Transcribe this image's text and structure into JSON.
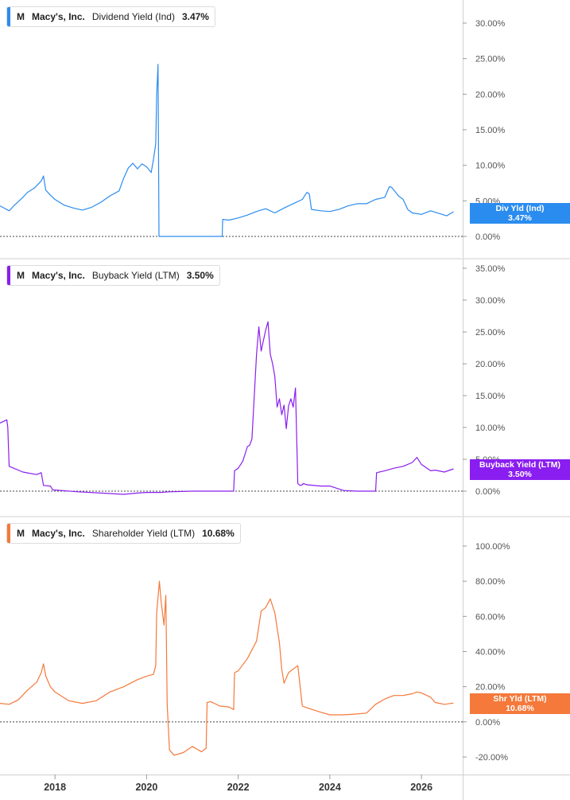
{
  "chart_data": [
    {
      "type": "line",
      "legend": {
        "ticker": "M",
        "company": "Macy's, Inc.",
        "metric": "Dividend Yield (Ind)",
        "value": "3.47%"
      },
      "badge": {
        "label": "Div Yld (Ind)",
        "value": "3.47%"
      },
      "color": "#2b8cef",
      "yticks": [
        "0.00%",
        "5.00%",
        "10.00%",
        "15.00%",
        "20.00%",
        "25.00%",
        "30.00%"
      ],
      "ylim": [
        0,
        30
      ],
      "series": [
        {
          "x": [
            2016.8,
            2017.0,
            2017.1,
            2017.3,
            2017.4,
            2017.55,
            2017.7,
            2017.75,
            2017.8,
            2017.9,
            2018.0,
            2018.2,
            2018.4,
            2018.6,
            2018.8,
            2019.0,
            2019.2,
            2019.4,
            2019.5,
            2019.6,
            2019.7,
            2019.8,
            2019.9,
            2020.0,
            2020.1,
            2020.15,
            2020.2,
            2020.22,
            2020.25,
            2020.27,
            2020.3,
            2020.5,
            2021.0,
            2021.5,
            2021.65,
            2021.66,
            2021.8,
            2022.0,
            2022.2,
            2022.4,
            2022.6,
            2022.8,
            2023.0,
            2023.2,
            2023.4,
            2023.5,
            2023.55,
            2023.6,
            2023.8,
            2024.0,
            2024.2,
            2024.4,
            2024.6,
            2024.8,
            2025.0,
            2025.2,
            2025.3,
            2025.35,
            2025.5,
            2025.6,
            2025.7,
            2025.8,
            2026.0,
            2026.2,
            2026.4,
            2026.55,
            2026.7
          ],
          "y": [
            4.3,
            3.6,
            4.3,
            5.5,
            6.2,
            6.8,
            7.8,
            8.5,
            6.5,
            5.8,
            5.2,
            4.4,
            4.0,
            3.7,
            4.1,
            4.8,
            5.7,
            6.4,
            8.2,
            9.6,
            10.3,
            9.5,
            10.2,
            9.8,
            9.0,
            10.8,
            13.0,
            20.0,
            24.2,
            0.0,
            0.0,
            0.0,
            0.0,
            0.0,
            0.0,
            2.4,
            2.3,
            2.6,
            3.0,
            3.5,
            3.9,
            3.3,
            4.0,
            4.6,
            5.2,
            6.2,
            6.0,
            3.8,
            3.6,
            3.5,
            3.8,
            4.3,
            4.6,
            4.6,
            5.2,
            5.5,
            7.0,
            6.9,
            5.7,
            5.2,
            3.8,
            3.3,
            3.1,
            3.6,
            3.2,
            2.9,
            3.47
          ]
        }
      ]
    },
    {
      "type": "line",
      "legend": {
        "ticker": "M",
        "company": "Macy's, Inc.",
        "metric": "Buyback Yield (LTM)",
        "value": "3.50%"
      },
      "badge": {
        "label": "Buyback Yield (LTM)",
        "value": "3.50%"
      },
      "color": "#8a1ef0",
      "yticks": [
        "0.00%",
        "5.00%",
        "10.00%",
        "15.00%",
        "20.00%",
        "25.00%",
        "30.00%",
        "35.00%"
      ],
      "ylim": [
        0,
        35
      ],
      "series": [
        {
          "x": [
            2016.8,
            2016.95,
            2016.97,
            2017.0,
            2017.3,
            2017.6,
            2017.7,
            2017.75,
            2017.9,
            2017.95,
            2018.5,
            2019.0,
            2019.5,
            2019.8,
            2020.0,
            2020.3,
            2020.5,
            2021.0,
            2021.5,
            2021.9,
            2021.92,
            2022.0,
            2022.1,
            2022.2,
            2022.25,
            2022.3,
            2022.4,
            2022.45,
            2022.5,
            2022.6,
            2022.65,
            2022.7,
            2022.75,
            2022.8,
            2022.85,
            2022.9,
            2022.95,
            2023.0,
            2023.05,
            2023.1,
            2023.15,
            2023.2,
            2023.25,
            2023.3,
            2023.35,
            2023.4,
            2023.42,
            2023.5,
            2023.8,
            2024.0,
            2024.3,
            2024.6,
            2024.8,
            2025.0,
            2025.02,
            2025.2,
            2025.4,
            2025.6,
            2025.8,
            2025.9,
            2026.0,
            2026.2,
            2026.3,
            2026.5,
            2026.7
          ],
          "y": [
            10.7,
            11.2,
            10.0,
            3.9,
            3.0,
            2.6,
            2.9,
            0.9,
            0.8,
            0.2,
            -0.1,
            -0.3,
            -0.5,
            -0.3,
            -0.2,
            -0.2,
            -0.1,
            0.0,
            0.0,
            0.0,
            3.2,
            3.6,
            4.7,
            7.0,
            7.2,
            8.2,
            21.5,
            25.8,
            22.0,
            25.3,
            26.6,
            21.5,
            20.0,
            18.0,
            13.2,
            14.5,
            12.0,
            13.5,
            9.8,
            13.4,
            14.5,
            13.2,
            16.2,
            1.2,
            0.9,
            1.0,
            1.2,
            1.0,
            0.8,
            0.8,
            0.1,
            0.0,
            0.0,
            0.0,
            2.9,
            3.2,
            3.6,
            3.9,
            4.5,
            5.3,
            4.2,
            3.2,
            3.3,
            3.0,
            3.5
          ]
        }
      ]
    },
    {
      "type": "line",
      "legend": {
        "ticker": "M",
        "company": "Macy's, Inc.",
        "metric": "Shareholder Yield (LTM)",
        "value": "10.68%"
      },
      "badge": {
        "label": "Shr Yld (LTM)",
        "value": "10.68%"
      },
      "color": "#f4793b",
      "yticks": [
        "-20.00%",
        "0.00%",
        "20.00%",
        "40.00%",
        "60.00%",
        "80.00%",
        "100.00%"
      ],
      "ylim": [
        -20,
        100
      ],
      "series": [
        {
          "x": [
            2016.8,
            2017.0,
            2017.2,
            2017.4,
            2017.6,
            2017.7,
            2017.75,
            2017.8,
            2017.9,
            2018.0,
            2018.3,
            2018.6,
            2018.9,
            2019.2,
            2019.5,
            2019.8,
            2020.0,
            2020.15,
            2020.2,
            2020.22,
            2020.28,
            2020.32,
            2020.38,
            2020.42,
            2020.45,
            2020.5,
            2020.6,
            2020.8,
            2021.0,
            2021.2,
            2021.3,
            2021.32,
            2021.4,
            2021.6,
            2021.8,
            2021.9,
            2021.92,
            2022.0,
            2022.2,
            2022.4,
            2022.5,
            2022.6,
            2022.7,
            2022.8,
            2022.9,
            2022.95,
            2023.0,
            2023.1,
            2023.3,
            2023.4,
            2023.5,
            2023.8,
            2024.0,
            2024.3,
            2024.6,
            2024.8,
            2025.0,
            2025.2,
            2025.4,
            2025.6,
            2025.8,
            2025.9,
            2026.0,
            2026.2,
            2026.3,
            2026.5,
            2026.7
          ],
          "y": [
            10.5,
            10.0,
            12.5,
            18.0,
            22.5,
            28.0,
            33.0,
            26.0,
            20.0,
            17.0,
            12.0,
            10.5,
            12.0,
            17.0,
            20.0,
            24.0,
            26.0,
            27.0,
            32.0,
            62.0,
            80.0,
            68.0,
            55.0,
            72.0,
            10.0,
            -16.0,
            -19.0,
            -17.5,
            -14.0,
            -17.0,
            -15.0,
            11.0,
            11.5,
            9.0,
            8.5,
            7.0,
            28.0,
            29.0,
            36.0,
            46.0,
            63.0,
            65.0,
            70.0,
            62.0,
            45.0,
            30.0,
            22.0,
            28.0,
            32.0,
            9.0,
            8.0,
            5.5,
            4.0,
            4.0,
            4.5,
            5.0,
            10.0,
            13.0,
            15.0,
            15.0,
            16.0,
            17.0,
            16.5,
            14.0,
            11.0,
            10.0,
            10.68
          ]
        }
      ]
    }
  ],
  "x_axis": {
    "ticks": [
      {
        "label": "2018",
        "value": 2018
      },
      {
        "label": "2020",
        "value": 2020
      },
      {
        "label": "2022",
        "value": 2022
      },
      {
        "label": "2024",
        "value": 2024
      },
      {
        "label": "2026",
        "value": 2026
      }
    ],
    "xlim": [
      2016.8,
      2026.9
    ]
  }
}
